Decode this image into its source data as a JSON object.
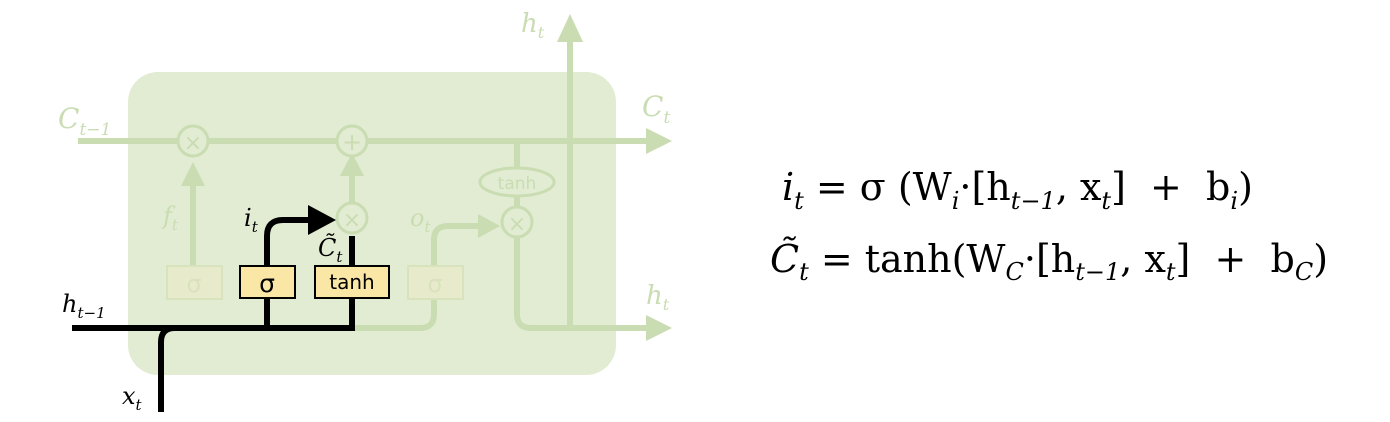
{
  "diagram": {
    "labels": {
      "c_prev": "C",
      "c_prev_sub": "t−1",
      "c_out": "C",
      "c_out_sub": "t",
      "h_top": "h",
      "h_top_sub": "t",
      "h_right": "h",
      "h_right_sub": "t",
      "h_prev": "h",
      "h_prev_sub": "t−1",
      "x_in": "x",
      "x_in_sub": "t",
      "f_gate": "f",
      "f_gate_sub": "t",
      "i_gate": "i",
      "i_gate_sub": "t",
      "o_gate": "o",
      "o_gate_sub": "t",
      "c_tilde": "C̃",
      "c_tilde_sub": "t"
    },
    "ops": {
      "times": "×",
      "plus": "+",
      "tanh": "tanh"
    },
    "gates": {
      "forget": "σ",
      "input": "σ",
      "candidate": "tanh",
      "output": "σ"
    },
    "colors": {
      "cell_fill": "#e2ecd2",
      "faded_line": "#c9dcb2",
      "highlight_line": "#000000",
      "gate_fill": "#fae7a6",
      "faded_gate_fill": "#e8ebcb"
    }
  },
  "equations": {
    "eq1": {
      "lhs": "i",
      "lhs_sub": "t",
      "rhs": " = σ (W",
      "w_sub": "i",
      "mid": "·[h",
      "h_sub": "t−1",
      "comma": ", x",
      "x_sub": "t",
      "tail": "]  +  b",
      "b_sub": "i",
      "end": ")"
    },
    "eq2": {
      "lhs": "C̃",
      "lhs_sub": "t",
      "rhs": " = tanh(W",
      "w_sub": "C",
      "mid": "·[h",
      "h_sub": "t−1",
      "comma": ", x",
      "x_sub": "t",
      "tail": "]  +  b",
      "b_sub": "C",
      "end": ")"
    }
  }
}
